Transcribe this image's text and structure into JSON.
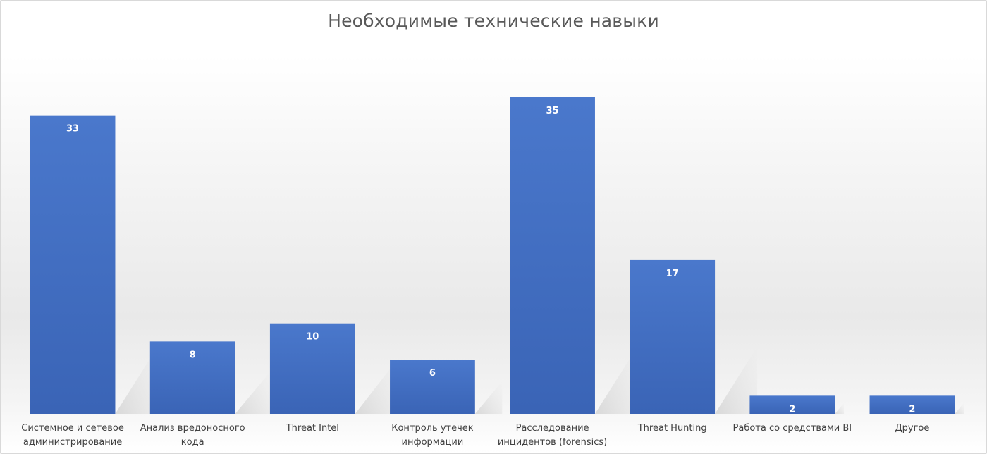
{
  "chart_data": {
    "type": "bar",
    "title": "Необходимые технические навыки",
    "categories": [
      [
        "Системное и сетевое",
        "администрирование"
      ],
      [
        "Анализ вредоносного",
        "кода"
      ],
      [
        "Threat Intel"
      ],
      [
        "Контроль утечек",
        "информации"
      ],
      [
        "Расследование",
        "инцидентов (forensics)"
      ],
      [
        "Threat Hunting"
      ],
      [
        "Работа со средствами BI"
      ],
      [
        "Другое"
      ]
    ],
    "values": [
      33,
      8,
      10,
      6,
      35,
      17,
      2,
      2
    ],
    "ylim": [
      0,
      35
    ],
    "grid": false,
    "legend": "none",
    "bar_color": "#4472c4"
  }
}
